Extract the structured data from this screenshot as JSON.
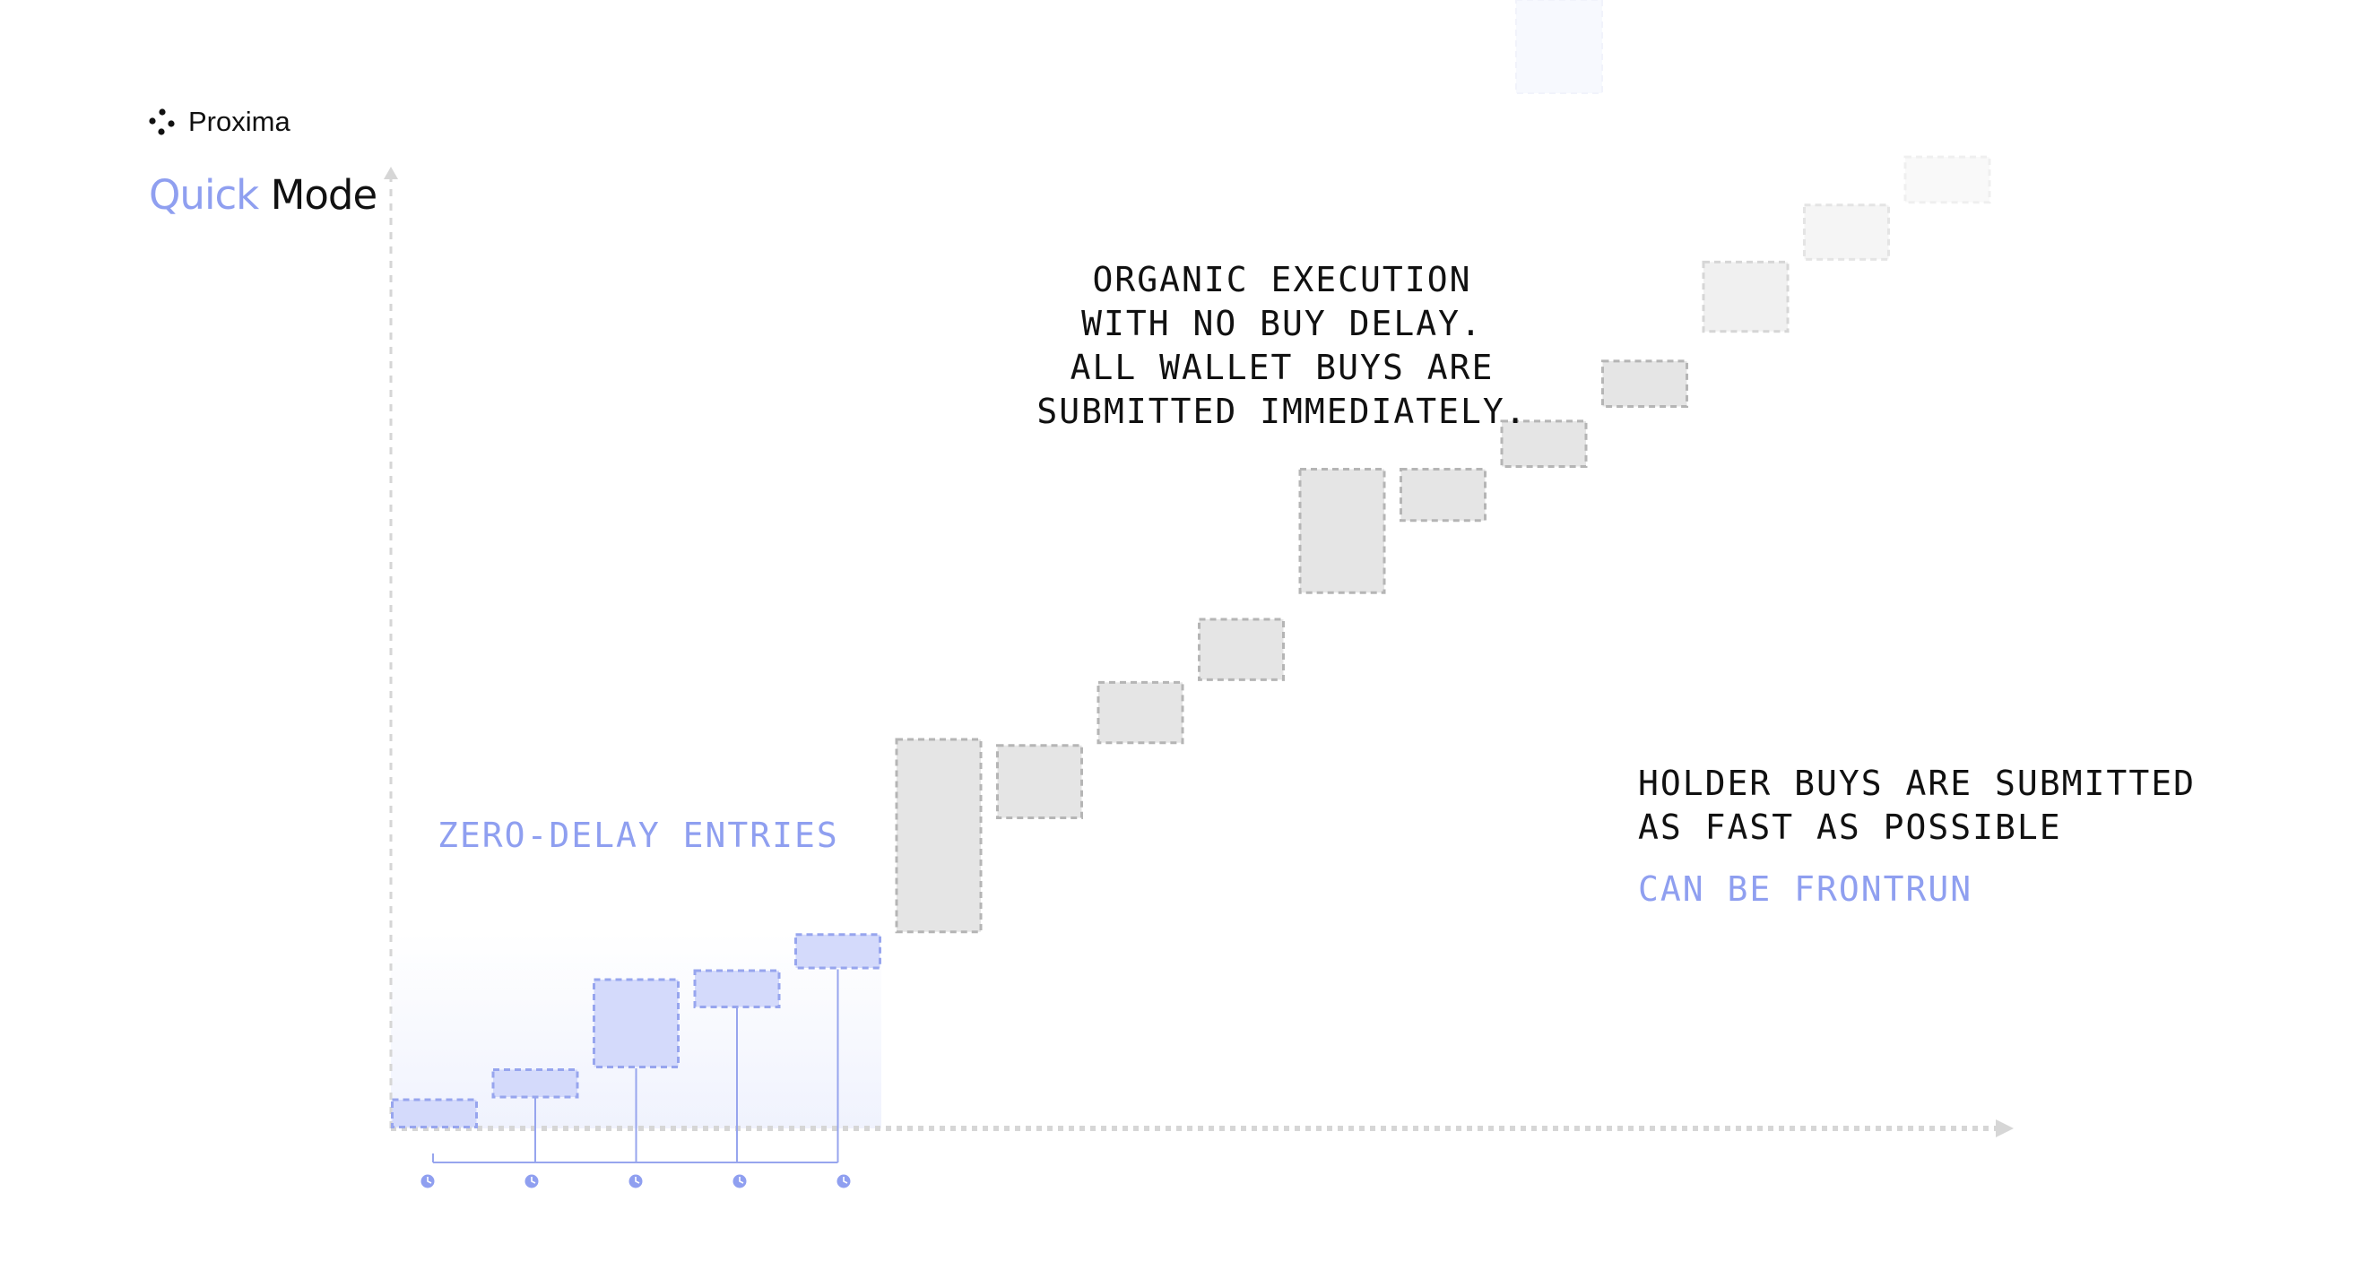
{
  "brand": {
    "logo_text": "Proxima",
    "logo_icon": "four-dot-cluster-icon"
  },
  "title": {
    "quick": "Quick",
    "mode": "Mode"
  },
  "annotations": {
    "organic_lines": [
      "ORGANIC EXECUTION",
      "WITH NO BUY DELAY.",
      "ALL WALLET BUYS ARE",
      "SUBMITTED IMMEDIATELY."
    ],
    "holder_lines": [
      "HOLDER BUYS ARE SUBMITTED",
      "AS FAST AS POSSIBLE"
    ],
    "frontrun": "CAN BE FRONTRUN",
    "zero_delay": "ZERO-DELAY ENTRIES"
  },
  "colors": {
    "accent": "#8f9ff0",
    "accent_fill": "#d4dafb",
    "accent_border": "#97a5ee",
    "gray_fill": "#e5e5e5",
    "gray_border": "#b5b5b5",
    "text": "#111111",
    "axis": "#d6d6d6"
  },
  "chart_data": {
    "type": "waterfall",
    "x_axis": "time",
    "y_axis": "price",
    "zero_delay_steps": [
      {
        "start": 0,
        "end": 1
      },
      {
        "start": 1,
        "end": 2
      },
      {
        "start": 2,
        "end": 5
      },
      {
        "start": 4,
        "end": 5.3
      },
      {
        "start": 5.3,
        "end": 6.5
      }
    ],
    "holder_steps": [
      {
        "start": 6.5,
        "end": 13
      },
      {
        "start": 10.3,
        "end": 12.8
      },
      {
        "start": 12.8,
        "end": 14.9
      },
      {
        "start": 14.9,
        "end": 17
      },
      {
        "start": 17.8,
        "end": 22
      },
      {
        "start": 20.2,
        "end": 22
      },
      {
        "start": 22,
        "end": 23.6
      },
      {
        "start": 24,
        "end": 25.6
      },
      {
        "start": 26.5,
        "end": 28.9
      },
      {
        "start": 28.9,
        "end": 30.8
      },
      {
        "start": 30.8,
        "end": 32.4
      }
    ],
    "holder_step_opacity": [
      1,
      1,
      1,
      1,
      1,
      1,
      1,
      1,
      0.55,
      0.35,
      0.2
    ],
    "timeline_markers": 5
  }
}
